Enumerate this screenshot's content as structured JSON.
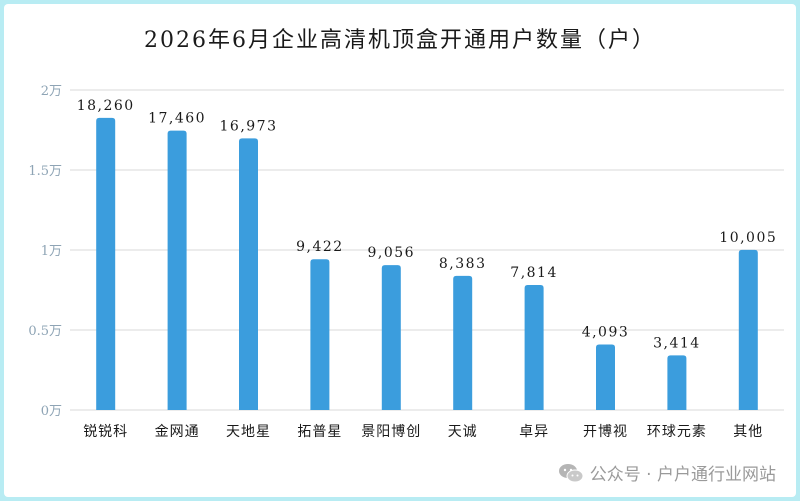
{
  "chart_data": {
    "type": "bar",
    "title": "2026年6月企业高清机顶盒开通用户数量（户）",
    "xlabel": "",
    "ylabel": "",
    "categories": [
      "锐锐科",
      "金网通",
      "天地星",
      "拓普星",
      "景阳博创",
      "天诚",
      "卓异",
      "开博视",
      "环球元素",
      "其他"
    ],
    "values": [
      18260,
      17460,
      16973,
      9422,
      9056,
      8383,
      7814,
      4093,
      3414,
      10005
    ],
    "data_labels": [
      "18,260",
      "17,460",
      "16,973",
      "9,422",
      "9,056",
      "8,383",
      "7,814",
      "4,093",
      "3,414",
      "10,005"
    ],
    "ylim": [
      0,
      20000
    ],
    "yticks": [
      0,
      5000,
      10000,
      15000,
      20000
    ],
    "ytick_labels": [
      "0万",
      "0.5万",
      "1万",
      "1.5万",
      "2万"
    ],
    "grid": true,
    "bar_color": "#3b9ddd"
  },
  "watermark": {
    "text": "公众号 · 户户通行业网站",
    "icon": "wechat-icon"
  }
}
